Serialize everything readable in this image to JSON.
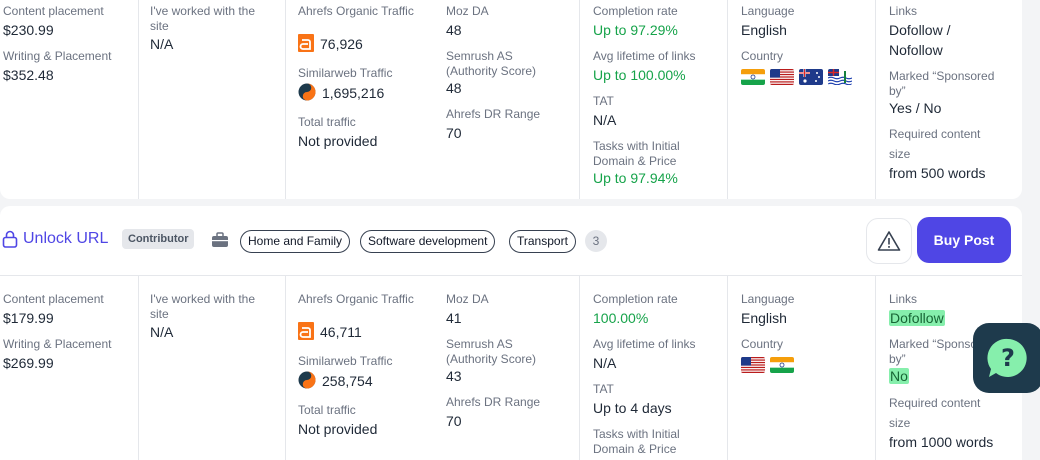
{
  "row1": {
    "price": {
      "content_placement_label": "Content placement",
      "content_placement_value": "$230.99",
      "writing_placement_label": "Writing & Placement",
      "writing_placement_value": "$352.48"
    },
    "worked": {
      "label": "I've worked with the site",
      "value": "N/A"
    },
    "traffic": {
      "ahrefs_label": "Ahrefs Organic Traffic",
      "ahrefs_value": "76,926",
      "similarweb_label": "Similarweb Traffic",
      "similarweb_value": "1,695,216",
      "total_label": "Total traffic",
      "total_value": "Not provided"
    },
    "authority": {
      "moz_label": "Moz DA",
      "moz_value": "48",
      "semrush_label": "Semrush AS (Authority Score)",
      "semrush_value": "48",
      "dr_label": "Ahrefs DR Range",
      "dr_value": "70"
    },
    "rates": {
      "completion_label": "Completion rate",
      "completion_value": "Up to 97.29%",
      "lifetime_label": "Avg lifetime of links",
      "lifetime_value": "Up to 100.00%",
      "tat_label": "TAT",
      "tat_value": "N/A",
      "initial_label": "Tasks with Initial Domain & Price",
      "initial_value": "Up to 97.94%"
    },
    "locale": {
      "language_label": "Language",
      "language_value": "English",
      "country_label": "Country",
      "flags": [
        "india-flag",
        "usa-flag",
        "australia-flag",
        "british-indian-ocean-flag"
      ]
    },
    "links": {
      "links_label": "Links",
      "links_value_1": "Dofollow /",
      "links_value_2": "Nofollow",
      "sponsored_label": "Marked “Sponsored by”",
      "sponsored_value": "Yes / No",
      "size_label_1": "Required content",
      "size_label_2": "size",
      "size_value": "from 500 words"
    }
  },
  "header": {
    "unlock_label": "Unlock URL",
    "badge": "Contributor",
    "tags": [
      "Home and Family",
      "Software development",
      "Transport"
    ],
    "more_count": "3",
    "buy_label": "Buy Post"
  },
  "row2": {
    "price": {
      "content_placement_label": "Content placement",
      "content_placement_value": "$179.99",
      "writing_placement_label": "Writing & Placement",
      "writing_placement_value": "$269.99"
    },
    "worked": {
      "label": "I've worked with the site",
      "value": "N/A"
    },
    "traffic": {
      "ahrefs_label": "Ahrefs Organic Traffic",
      "ahrefs_value": "46,711",
      "similarweb_label": "Similarweb Traffic",
      "similarweb_value": "258,754",
      "total_label": "Total traffic",
      "total_value": "Not provided"
    },
    "authority": {
      "moz_label": "Moz DA",
      "moz_value": "41",
      "semrush_label": "Semrush AS (Authority Score)",
      "semrush_value": "43",
      "dr_label": "Ahrefs DR Range",
      "dr_value": "70"
    },
    "rates": {
      "completion_label": "Completion rate",
      "completion_value": "100.00%",
      "lifetime_label": "Avg lifetime of links",
      "lifetime_value": "N/A",
      "tat_label": "TAT",
      "tat_value": "Up to 4 days",
      "initial_label": "Tasks with Initial Domain & Price"
    },
    "locale": {
      "language_label": "Language",
      "language_value": "English",
      "country_label": "Country",
      "flags": [
        "usa-flag",
        "india-flag"
      ]
    },
    "links": {
      "links_label": "Links",
      "links_value": "Dofollow",
      "sponsored_label": "Marked “Sponsored by”",
      "sponsored_value": "No",
      "size_label_1": "Required content",
      "size_label_2": "size",
      "size_value": "from 1000 words"
    }
  },
  "help_label": "?"
}
